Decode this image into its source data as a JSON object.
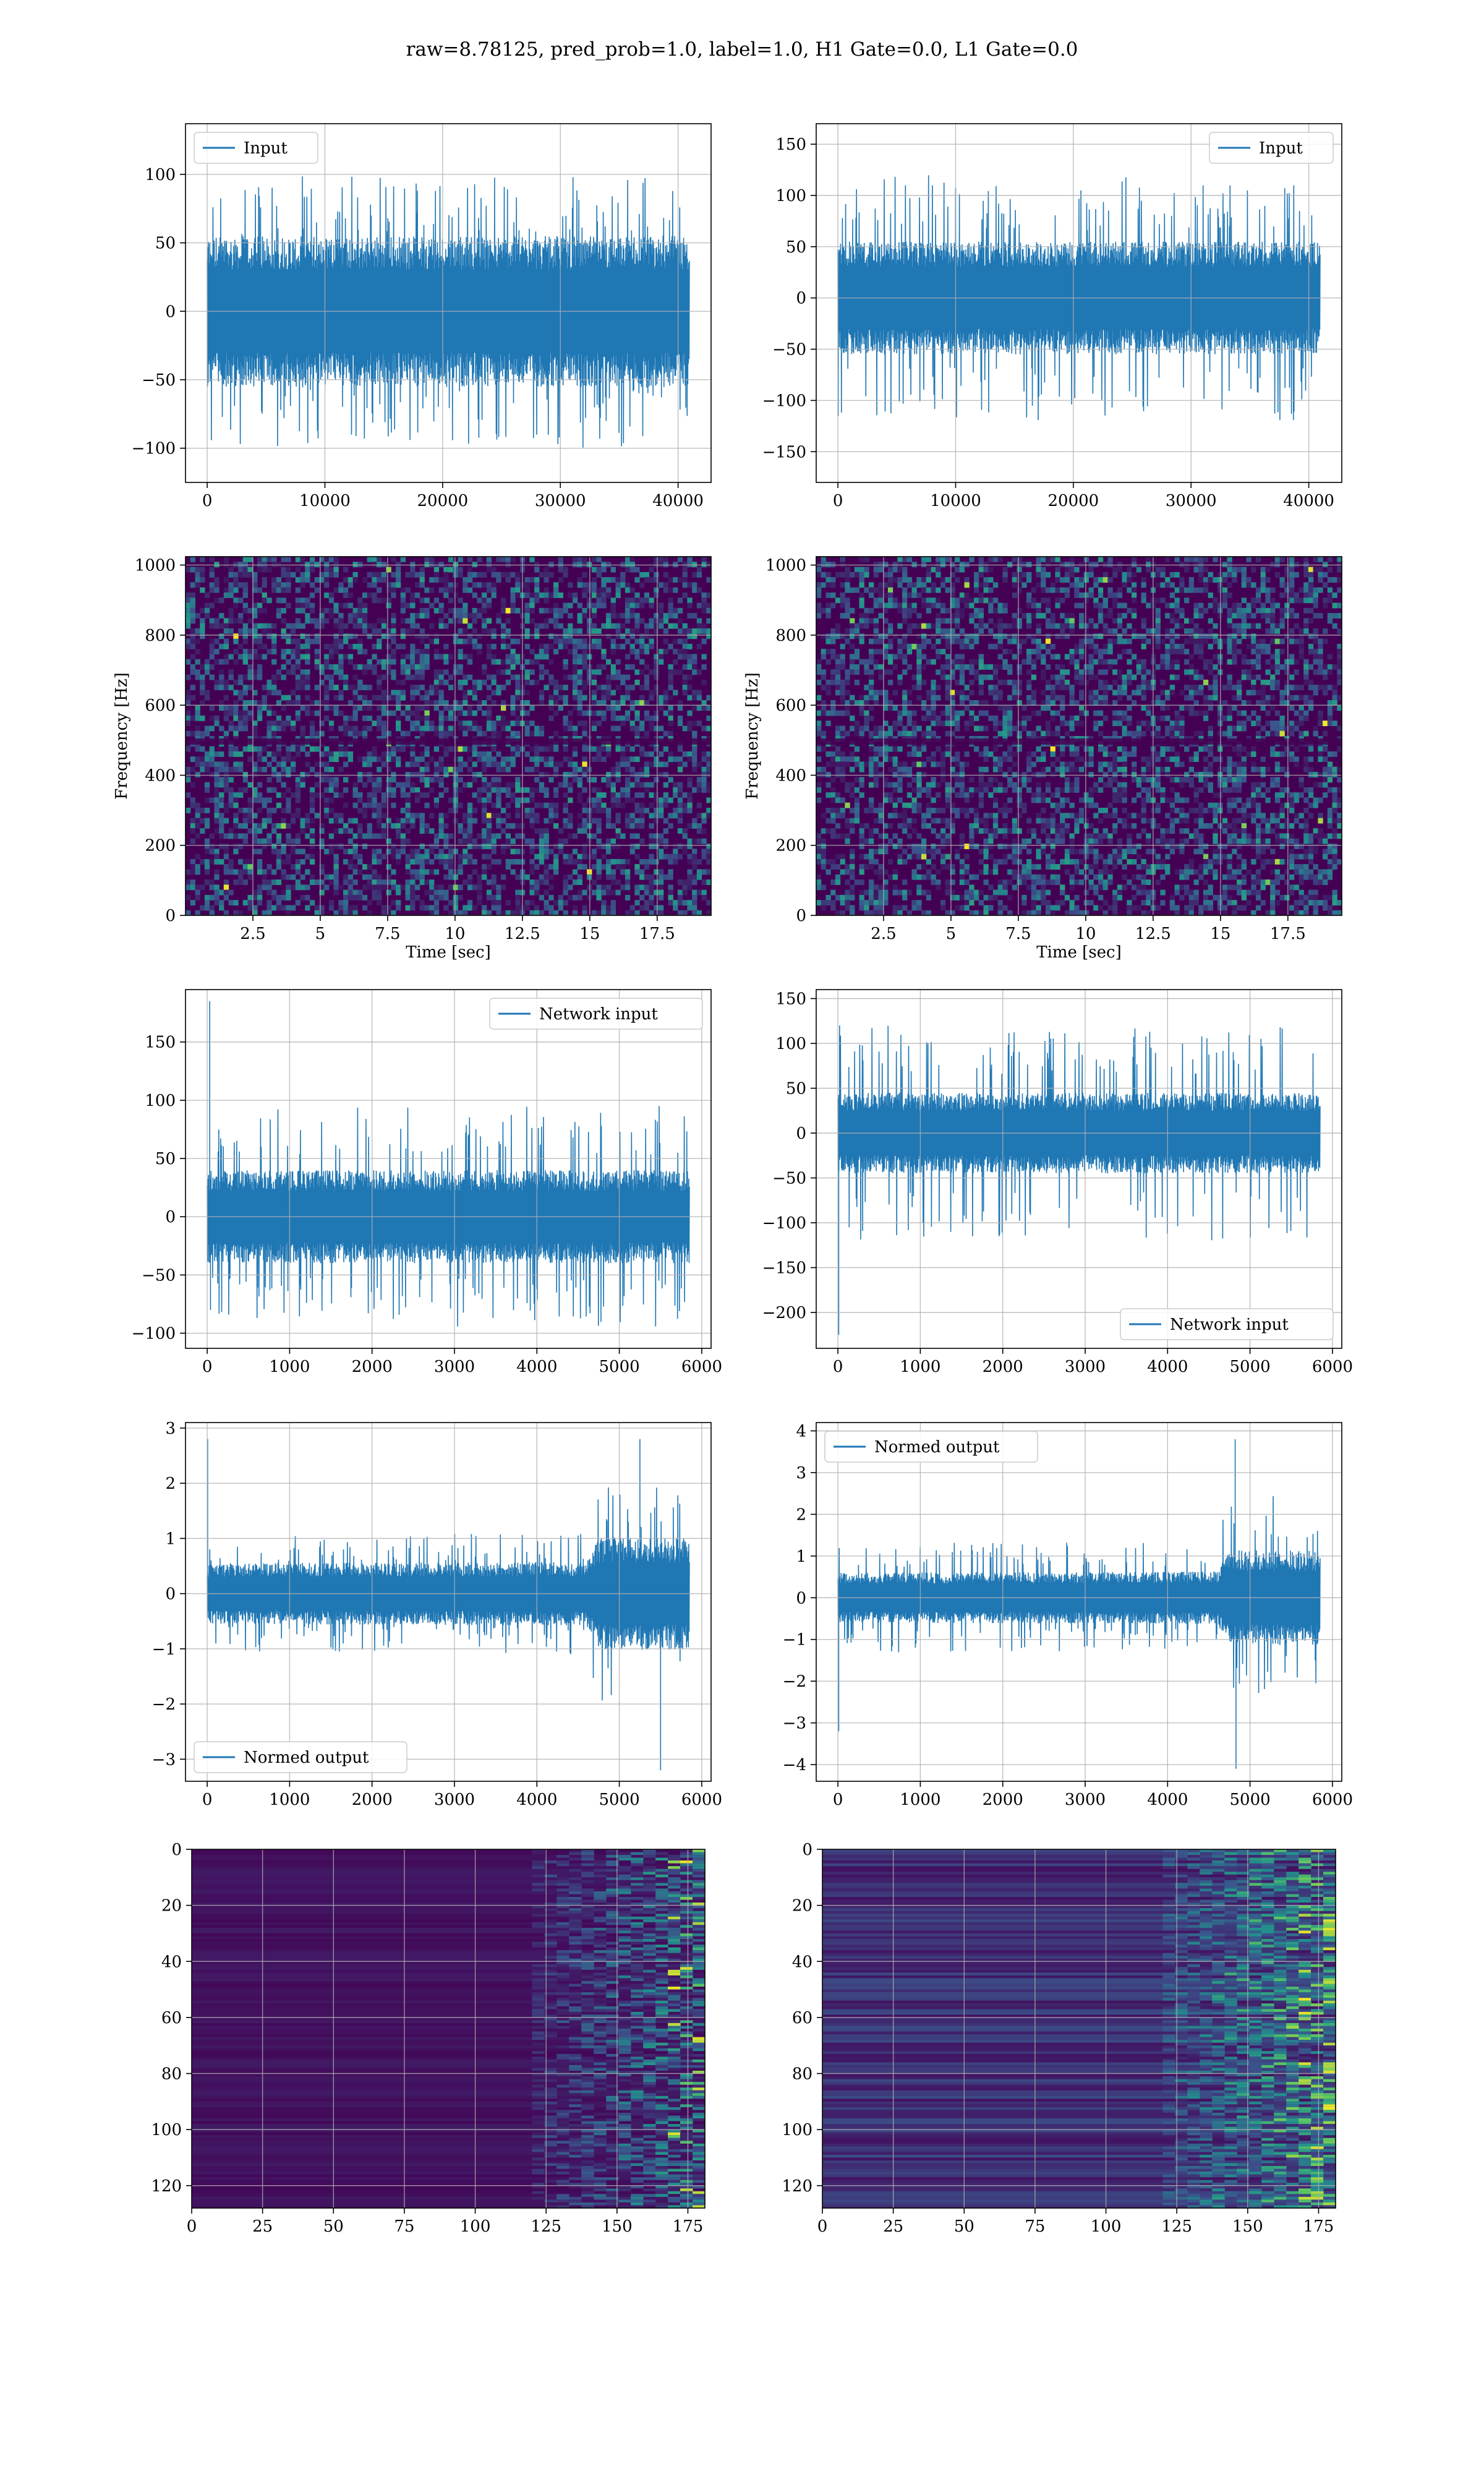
{
  "suptitle": "raw=8.78125, pred_prob=1.0, label=1.0, H1 Gate=0.0, L1 Gate=0.0",
  "colors": {
    "line": "#1f77b4",
    "grid": "#b0b0b0",
    "viridis_dark": "#440154",
    "viridis_mid": "#3b528b",
    "viridis_teal": "#21908d",
    "viridis_green": "#5dc863",
    "viridis_yellow": "#fde725"
  },
  "chart_data": [
    {
      "id": "input-h1",
      "type": "line",
      "legend": "Input",
      "legend_loc": "upper left",
      "x_range": [
        0,
        40960
      ],
      "ylim": [
        -125,
        137
      ],
      "xticks": [
        0,
        10000,
        20000,
        30000,
        40000
      ],
      "yticks": [
        -100,
        -50,
        0,
        50,
        100
      ],
      "envelope": {
        "core": 55,
        "peak": 100,
        "trend": [
          [
            0,
            0
          ]
        ]
      },
      "grid": true
    },
    {
      "id": "input-l1",
      "type": "line",
      "legend": "Input",
      "legend_loc": "upper right",
      "x_range": [
        0,
        40960
      ],
      "ylim": [
        -180,
        170
      ],
      "xticks": [
        0,
        10000,
        20000,
        30000,
        40000
      ],
      "yticks": [
        -150,
        -100,
        -50,
        0,
        50,
        100,
        150
      ],
      "envelope": {
        "core": 55,
        "peak": 120,
        "trend": [
          [
            0,
            0
          ]
        ]
      },
      "grid": true
    },
    {
      "id": "spec-h1",
      "type": "heatmap",
      "xlabel": "Time [sec]",
      "ylabel": "Frequency [Hz]",
      "xlim": [
        0,
        19.5
      ],
      "ylim": [
        0,
        1024
      ],
      "xticks": [
        2.5,
        5.0,
        7.5,
        10.0,
        12.5,
        15.0,
        17.5
      ],
      "yticks": [
        0,
        200,
        400,
        600,
        800,
        1000
      ],
      "style": "spec",
      "grid": true
    },
    {
      "id": "spec-l1",
      "type": "heatmap",
      "xlabel": "Time [sec]",
      "ylabel": "Frequency [Hz]",
      "xlim": [
        0,
        19.5
      ],
      "ylim": [
        0,
        1024
      ],
      "xticks": [
        2.5,
        5.0,
        7.5,
        10.0,
        12.5,
        15.0,
        17.5
      ],
      "yticks": [
        0,
        200,
        400,
        600,
        800,
        1000
      ],
      "style": "spec",
      "grid": true
    },
    {
      "id": "net-h1",
      "type": "line",
      "legend": "Network input",
      "legend_loc": "upper right",
      "x_range": [
        0,
        5850
      ],
      "ylim": [
        -113,
        195
      ],
      "xticks": [
        0,
        1000,
        2000,
        3000,
        4000,
        5000,
        6000
      ],
      "yticks": [
        -100,
        -50,
        0,
        50,
        100,
        150
      ],
      "envelope": {
        "core": 40,
        "peak": 95,
        "trend": [
          [
            0,
            0
          ]
        ]
      },
      "spikes": [
        [
          30,
          185
        ],
        [
          40,
          -80
        ]
      ],
      "grid": true
    },
    {
      "id": "net-l1",
      "type": "line",
      "legend": "Network input",
      "legend_loc": "lower right",
      "x_range": [
        0,
        5850
      ],
      "ylim": [
        -240,
        160
      ],
      "xticks": [
        0,
        1000,
        2000,
        3000,
        4000,
        5000,
        6000
      ],
      "yticks": [
        -200,
        -150,
        -100,
        -50,
        0,
        50,
        100,
        150
      ],
      "envelope": {
        "core": 45,
        "peak": 120,
        "trend": [
          [
            0,
            0
          ]
        ]
      },
      "spikes": [
        [
          10,
          -225
        ],
        [
          20,
          120
        ]
      ],
      "grid": true
    },
    {
      "id": "norm-h1",
      "type": "line",
      "legend": "Normed output",
      "legend_loc": "lower left",
      "x_range": [
        0,
        5850
      ],
      "ylim": [
        -3.4,
        3.1
      ],
      "xticks": [
        0,
        1000,
        2000,
        3000,
        4000,
        5000,
        6000
      ],
      "yticks": [
        -3,
        -2,
        -1,
        0,
        1,
        2,
        3
      ],
      "envelope": {
        "core": 0.55,
        "peak": 1.05,
        "trend": [
          [
            0,
            0
          ],
          [
            4600,
            0.05
          ],
          [
            4750,
            0.85
          ],
          [
            5850,
            0.85
          ]
        ]
      },
      "spikes": [
        [
          5,
          2.8
        ],
        [
          5500,
          -3.2
        ],
        [
          5250,
          2.8
        ]
      ],
      "grid": true
    },
    {
      "id": "norm-l1",
      "type": "line",
      "legend": "Normed output",
      "legend_loc": "upper left",
      "x_range": [
        0,
        5850
      ],
      "ylim": [
        -4.4,
        4.2
      ],
      "xticks": [
        0,
        1000,
        2000,
        3000,
        4000,
        5000,
        6000
      ],
      "yticks": [
        -4,
        -3,
        -2,
        -1,
        0,
        1,
        2,
        3,
        4
      ],
      "envelope": {
        "core": 0.6,
        "peak": 1.3,
        "trend": [
          [
            0,
            0
          ],
          [
            4600,
            0.05
          ],
          [
            4750,
            0.9
          ],
          [
            5850,
            0.9
          ]
        ]
      },
      "spikes": [
        [
          10,
          -3.2
        ],
        [
          4830,
          -4.1
        ],
        [
          4820,
          3.8
        ]
      ],
      "grid": true
    },
    {
      "id": "feat-h1",
      "type": "heatmap",
      "xlim": [
        0,
        181
      ],
      "ylim": [
        128,
        0
      ],
      "xticks": [
        0,
        25,
        50,
        75,
        100,
        125,
        150,
        175
      ],
      "yticks": [
        0,
        20,
        40,
        60,
        80,
        100,
        120
      ],
      "style": "feat-dim",
      "grid": true
    },
    {
      "id": "feat-l1",
      "type": "heatmap",
      "xlim": [
        0,
        181
      ],
      "ylim": [
        128,
        0
      ],
      "xticks": [
        0,
        25,
        50,
        75,
        100,
        125,
        150,
        175
      ],
      "yticks": [
        0,
        20,
        40,
        60,
        80,
        100,
        120
      ],
      "style": "feat-bright",
      "grid": true
    }
  ]
}
